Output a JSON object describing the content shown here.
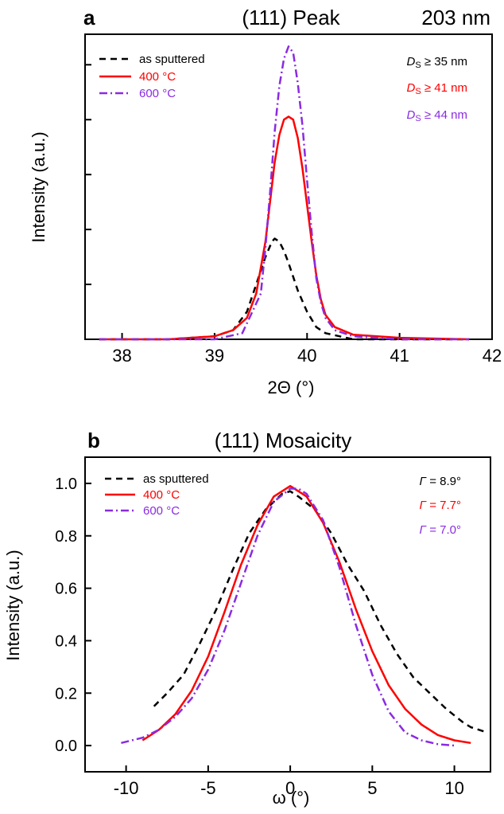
{
  "colors": {
    "as_sputtered": "#000000",
    "c400": "#ff0000",
    "c600": "#8a2be2"
  },
  "chart_data": [
    {
      "type": "line",
      "panel_label": "a",
      "title": "(111) Peak",
      "subtitle": "203 nm",
      "xlabel": "2Θ (°)",
      "ylabel": "Intensity (a.u.)",
      "xlim": [
        37.6,
        42.0
      ],
      "ylim": [
        0,
        1.0
      ],
      "xticks": [
        "38",
        "39",
        "40",
        "41",
        "42"
      ],
      "y_tick_labels_shown": false,
      "grid": false,
      "legend_position": "top-left",
      "series": [
        {
          "name": "as sputtered",
          "style": "dashed",
          "color": "#000000",
          "x": [
            37.75,
            38.5,
            39.0,
            39.2,
            39.35,
            39.45,
            39.55,
            39.62,
            39.65,
            39.7,
            39.75,
            39.8,
            39.9,
            40.0,
            40.1,
            40.2,
            40.35,
            40.5,
            41.0,
            41.75
          ],
          "y": [
            0.0,
            0.0,
            0.01,
            0.03,
            0.09,
            0.18,
            0.27,
            0.32,
            0.33,
            0.32,
            0.29,
            0.25,
            0.16,
            0.09,
            0.04,
            0.02,
            0.01,
            0.0,
            0.0,
            0.0
          ]
        },
        {
          "name": "400 °C",
          "style": "solid",
          "color": "#ff0000",
          "x": [
            37.75,
            38.5,
            39.0,
            39.2,
            39.35,
            39.45,
            39.55,
            39.6,
            39.65,
            39.7,
            39.75,
            39.8,
            39.85,
            39.9,
            39.95,
            40.0,
            40.05,
            40.1,
            40.15,
            40.2,
            40.3,
            40.5,
            41.0,
            41.75
          ],
          "y": [
            0.0,
            0.0,
            0.01,
            0.03,
            0.07,
            0.15,
            0.32,
            0.45,
            0.58,
            0.67,
            0.72,
            0.73,
            0.72,
            0.66,
            0.56,
            0.44,
            0.32,
            0.21,
            0.13,
            0.08,
            0.04,
            0.015,
            0.005,
            0.0
          ]
        },
        {
          "name": "600 °C",
          "style": "dashdot",
          "color": "#8a2be2",
          "x": [
            37.75,
            38.5,
            39.0,
            39.3,
            39.5,
            39.55,
            39.6,
            39.65,
            39.7,
            39.75,
            39.8,
            39.85,
            39.9,
            39.95,
            40.0,
            40.05,
            40.1,
            40.15,
            40.2,
            40.3,
            40.5,
            41.0,
            41.75
          ],
          "y": [
            0.0,
            0.0,
            0.0,
            0.02,
            0.15,
            0.3,
            0.48,
            0.68,
            0.83,
            0.92,
            0.96,
            0.94,
            0.84,
            0.7,
            0.52,
            0.35,
            0.2,
            0.12,
            0.07,
            0.03,
            0.01,
            0.0,
            0.0
          ]
        }
      ],
      "annotations": [
        {
          "prefix": "D",
          "sub": "S",
          "text": " ≥ 35 nm",
          "color": "#000000"
        },
        {
          "prefix": "D",
          "sub": "S",
          "text": " ≥ 41 nm",
          "color": "#ff0000"
        },
        {
          "prefix": "D",
          "sub": "S",
          "text": " ≥ 44 nm",
          "color": "#8a2be2"
        }
      ]
    },
    {
      "type": "line",
      "panel_label": "b",
      "title": "(111) Mosaicity",
      "xlabel": "ω (°)",
      "ylabel": "Intensity (a.u.)",
      "xlim": [
        -12.5,
        12.2
      ],
      "ylim": [
        -0.1,
        1.1
      ],
      "xticks": [
        "-10",
        "-5",
        "0",
        "5",
        "10"
      ],
      "yticks": [
        "0.0",
        "0.2",
        "0.4",
        "0.6",
        "0.8",
        "1.0"
      ],
      "grid": false,
      "legend_position": "top-left",
      "series": [
        {
          "name": "as sputtered",
          "style": "dashed",
          "color": "#000000",
          "x": [
            -8.3,
            -7.5,
            -6.5,
            -5.5,
            -4.5,
            -3.5,
            -2.5,
            -1.5,
            -0.5,
            0,
            0.5,
            1.5,
            2.5,
            3.5,
            4.5,
            5.5,
            6.5,
            7.5,
            8.5,
            9.5,
            10.5,
            11.0,
            12.0
          ],
          "y": [
            0.15,
            0.2,
            0.27,
            0.39,
            0.52,
            0.67,
            0.81,
            0.9,
            0.96,
            0.97,
            0.95,
            0.9,
            0.81,
            0.69,
            0.59,
            0.46,
            0.35,
            0.26,
            0.2,
            0.14,
            0.09,
            0.07,
            0.05
          ]
        },
        {
          "name": "400 °C",
          "style": "solid",
          "color": "#ff0000",
          "x": [
            -9.0,
            -8.0,
            -7.0,
            -6.0,
            -5.0,
            -4.0,
            -3.0,
            -2.0,
            -1.0,
            0,
            1.0,
            2.0,
            3.0,
            4.0,
            5.0,
            6.0,
            7.0,
            8.0,
            9.0,
            10.0,
            11.0
          ],
          "y": [
            0.02,
            0.06,
            0.12,
            0.21,
            0.34,
            0.51,
            0.69,
            0.84,
            0.95,
            0.99,
            0.95,
            0.85,
            0.7,
            0.52,
            0.36,
            0.23,
            0.14,
            0.08,
            0.04,
            0.02,
            0.01
          ]
        },
        {
          "name": "600 °C",
          "style": "dashdot",
          "color": "#8a2be2",
          "x": [
            -10.3,
            -9.0,
            -8.0,
            -7.0,
            -6.0,
            -5.0,
            -4.0,
            -3.0,
            -2.0,
            -1.0,
            0,
            0.5,
            1.0,
            2.0,
            3.0,
            4.0,
            5.0,
            6.0,
            7.0,
            8.0,
            9.0,
            10.0
          ],
          "y": [
            0.01,
            0.03,
            0.06,
            0.11,
            0.18,
            0.29,
            0.44,
            0.62,
            0.8,
            0.93,
            0.98,
            0.98,
            0.96,
            0.86,
            0.68,
            0.46,
            0.27,
            0.13,
            0.05,
            0.02,
            0.005,
            0.0
          ]
        }
      ],
      "annotations": [
        {
          "prefix": "Γ",
          "sub": "",
          "text": " = 8.9°",
          "color": "#000000"
        },
        {
          "prefix": "Γ",
          "sub": "",
          "text": " = 7.7°",
          "color": "#ff0000"
        },
        {
          "prefix": "Γ",
          "sub": "",
          "text": " = 7.0°",
          "color": "#8a2be2"
        }
      ]
    }
  ]
}
